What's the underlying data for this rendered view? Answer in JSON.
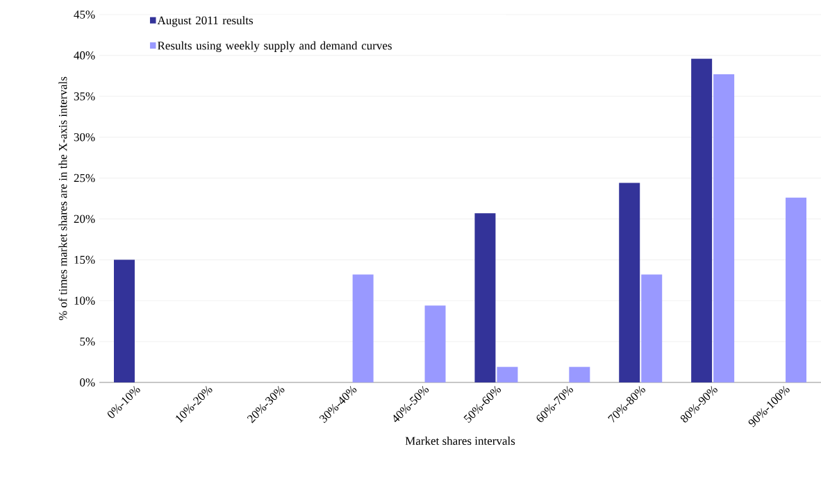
{
  "chart_data": {
    "type": "bar",
    "xlabel": "Market shares intervals",
    "ylabel": "% of times market shares are in the X-axis intervals",
    "categories": [
      "0%-10%",
      "10%-20%",
      "20%-30%",
      "30%-40%",
      "40%-50%",
      "50%-60%",
      "60%-70%",
      "70%-80%",
      "80%-90%",
      "90%-100%"
    ],
    "series": [
      {
        "name": "August 2011 results",
        "color": "#333399",
        "values": [
          15.0,
          0,
          0,
          0,
          0,
          20.7,
          0,
          24.4,
          39.6,
          0
        ]
      },
      {
        "name": "Results using weekly supply and demand curves",
        "color": "#9999ff",
        "values": [
          0,
          0,
          0,
          13.2,
          9.4,
          1.9,
          1.9,
          13.2,
          37.7,
          22.6
        ]
      }
    ],
    "ylim": [
      0,
      45
    ],
    "yticks": [
      {
        "value": 0,
        "label": "0%"
      },
      {
        "value": 5,
        "label": "5%"
      },
      {
        "value": 10,
        "label": "10%"
      },
      {
        "value": 15,
        "label": "15%"
      },
      {
        "value": 20,
        "label": "20%"
      },
      {
        "value": 25,
        "label": "25%"
      },
      {
        "value": 30,
        "label": "30%"
      },
      {
        "value": 35,
        "label": "35%"
      },
      {
        "value": 40,
        "label": "40%"
      },
      {
        "value": 45,
        "label": "45%"
      }
    ],
    "grid": "y",
    "legend": "top left"
  }
}
